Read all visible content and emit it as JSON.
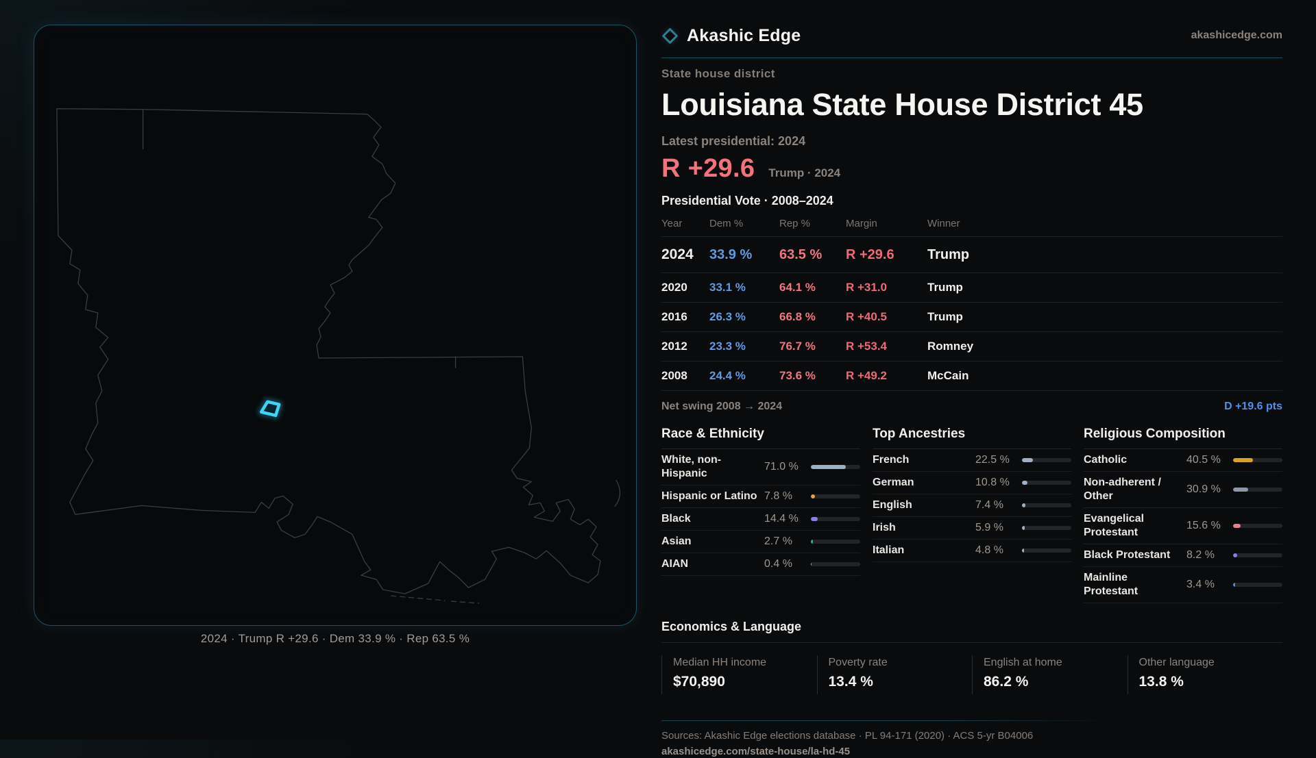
{
  "brand": {
    "name": "Akashic Edge",
    "site": "akashicedge.com"
  },
  "hero": {
    "kicker": "State house district",
    "title": "Louisiana State House District 45",
    "latest_label": "Latest presidential: 2024",
    "margin_big": "R +29.6",
    "margin_context": "Trump · 2024",
    "table_title": "Presidential Vote · 2008–2024"
  },
  "map": {
    "caption": "2024 · Trump R +29.6 · Dem 33.9 % · Rep 63.5 %",
    "highlight_color": "#3fd4f4",
    "outline_color": "#3a3d43"
  },
  "vote_table": {
    "columns": [
      "Year",
      "Dem %",
      "Rep %",
      "Margin",
      "Winner"
    ],
    "rows": [
      {
        "year": "2024",
        "dem": "33.9 %",
        "rep": "63.5 %",
        "margin": "R +29.6",
        "winner": "Trump",
        "emphasis": true
      },
      {
        "year": "2020",
        "dem": "33.1 %",
        "rep": "64.1 %",
        "margin": "R +31.0",
        "winner": "Trump",
        "emphasis": false
      },
      {
        "year": "2016",
        "dem": "26.3 %",
        "rep": "66.8 %",
        "margin": "R +40.5",
        "winner": "Trump",
        "emphasis": false
      },
      {
        "year": "2012",
        "dem": "23.3 %",
        "rep": "76.7 %",
        "margin": "R +53.4",
        "winner": "Romney",
        "emphasis": false
      },
      {
        "year": "2008",
        "dem": "24.4 %",
        "rep": "73.6 %",
        "margin": "R +49.2",
        "winner": "McCain",
        "emphasis": false
      }
    ]
  },
  "net_swing": {
    "label": "Net swing 2008 → 2024",
    "value": "D +19.6 pts"
  },
  "demographics": {
    "columns": [
      {
        "title": "Race & Ethnicity",
        "rows": [
          {
            "label": "White, non-Hispanic",
            "value": "71.0 %",
            "pct": 71.0,
            "color": "#9fb0c4"
          },
          {
            "label": "Hispanic or Latino",
            "value": "7.8 %",
            "pct": 7.8,
            "color": "#e3a43c"
          },
          {
            "label": "Black",
            "value": "14.4 %",
            "pct": 14.4,
            "color": "#8d7bf0"
          },
          {
            "label": "Asian",
            "value": "2.7 %",
            "pct": 2.7,
            "color": "#27b585"
          },
          {
            "label": "AIAN",
            "value": "0.4 %",
            "pct": 0.4,
            "color": "#9fb0c4"
          }
        ]
      },
      {
        "title": "Top Ancestries",
        "rows": [
          {
            "label": "French",
            "value": "22.5 %",
            "pct": 22.5,
            "color": "#9fb0c4"
          },
          {
            "label": "German",
            "value": "10.8 %",
            "pct": 10.8,
            "color": "#9fb0c4"
          },
          {
            "label": "English",
            "value": "7.4 %",
            "pct": 7.4,
            "color": "#9fb0c4"
          },
          {
            "label": "Irish",
            "value": "5.9 %",
            "pct": 5.9,
            "color": "#9fb0c4"
          },
          {
            "label": "Italian",
            "value": "4.8 %",
            "pct": 4.8,
            "color": "#9fb0c4"
          }
        ]
      },
      {
        "title": "Religious Composition",
        "rows": [
          {
            "label": "Catholic",
            "value": "40.5 %",
            "pct": 40.5,
            "color": "#d9a425"
          },
          {
            "label": "Non-adherent / Other",
            "value": "30.9 %",
            "pct": 30.9,
            "color": "#8d97a8"
          },
          {
            "label": "Evangelical Protestant",
            "value": "15.6 %",
            "pct": 15.6,
            "color": "#e5808d"
          },
          {
            "label": "Black Protestant",
            "value": "8.2 %",
            "pct": 8.2,
            "color": "#8d7bf0"
          },
          {
            "label": "Mainline Protestant",
            "value": "3.4 %",
            "pct": 3.4,
            "color": "#4d8fe0"
          }
        ]
      }
    ]
  },
  "economics": {
    "title": "Economics & Language",
    "stats": [
      {
        "label": "Median HH income",
        "value": "$70,890"
      },
      {
        "label": "Poverty rate",
        "value": "13.4 %"
      },
      {
        "label": "English at home",
        "value": "86.2 %"
      },
      {
        "label": "Other language",
        "value": "13.8 %"
      }
    ]
  },
  "footer": {
    "sources": "Sources: Akashic Edge elections database · PL 94-171 (2020) · ACS 5-yr B04006",
    "permalink": "akashicedge.com/state-house/la-hd-45"
  }
}
